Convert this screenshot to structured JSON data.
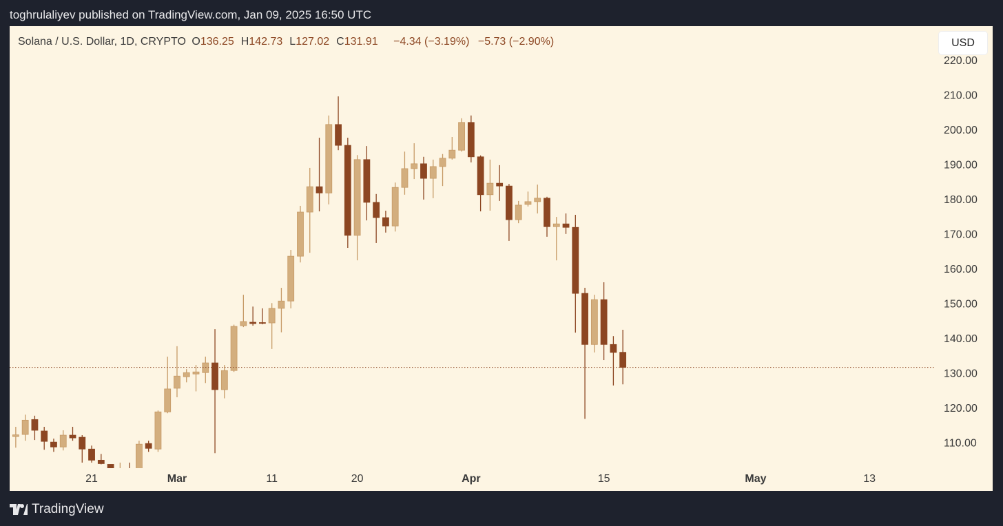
{
  "header": {
    "byline": "toghrulaliyev published on TradingView.com, Jan 09, 2025 16:50 UTC"
  },
  "footer": {
    "brand": "TradingView"
  },
  "toolbar": {
    "currency": "USD"
  },
  "legend": {
    "symbol": "Solana / U.S. Dollar, 1D, CRYPTO",
    "items": [
      {
        "label": "O",
        "value": "136.25"
      },
      {
        "label": "H",
        "value": "142.73"
      },
      {
        "label": "L",
        "value": "127.02"
      },
      {
        "label": "C",
        "value": "131.91"
      }
    ],
    "changes": [
      "−4.34 (−3.19%)",
      "−5.73 (−2.90%)"
    ]
  },
  "chart_data": {
    "type": "candlestick",
    "categories": [
      null,
      null,
      null,
      null,
      null,
      null,
      null,
      null,
      "21",
      null,
      null,
      null,
      null,
      null,
      null,
      null,
      null,
      "Mar",
      null,
      null,
      null,
      null,
      null,
      null,
      null,
      null,
      null,
      "11",
      null,
      null,
      null,
      null,
      null,
      null,
      null,
      null,
      "20",
      null,
      null,
      null,
      null,
      null,
      null,
      null,
      null,
      null,
      null,
      null,
      "Apr",
      null,
      null,
      null,
      null,
      null,
      null,
      null,
      null,
      null,
      null,
      null,
      null,
      null,
      "15",
      null,
      null,
      null,
      null,
      null,
      null,
      null,
      null,
      null,
      null,
      null,
      null,
      null,
      null,
      null,
      "May",
      null,
      null,
      null,
      null,
      null,
      null,
      null,
      null,
      null,
      null,
      null,
      "13",
      null,
      null,
      null,
      null,
      null,
      null,
      null,
      null,
      null,
      null,
      null,
      null
    ],
    "open": [
      112.0,
      112.6,
      116.9,
      113.6,
      110.4,
      109.0,
      112.4,
      111.8,
      108.4,
      105.2,
      104.0,
      101.0,
      102.0,
      101.5,
      110.0,
      108.4,
      119.1,
      125.9,
      129.2,
      130.0,
      130.4,
      133.2,
      125.5,
      131.0,
      143.9,
      144.9,
      144.8,
      144.7,
      148.9,
      151.0,
      163.9,
      176.6,
      183.9,
      182.1,
      201.8,
      195.8,
      169.9,
      191.7,
      179.4,
      175.0,
      172.6,
      183.7,
      189.1,
      190.5,
      186.3,
      189.7,
      192.1,
      194.4,
      202.4,
      192.5,
      181.6,
      184.9,
      184.1,
      174.4,
      178.8,
      179.6,
      180.6,
      172.4,
      173.2,
      172.2,
      153.2,
      138.5,
      151.4,
      138.5,
      136.25,
      null,
      null,
      null,
      null,
      null,
      null,
      null,
      null,
      null,
      null,
      null,
      null,
      null,
      null,
      null,
      null,
      null,
      null,
      null,
      null,
      null,
      null,
      null,
      null,
      null,
      null,
      null,
      null,
      null,
      null,
      null,
      null,
      null,
      null,
      null,
      null,
      null,
      null
    ],
    "high": [
      114.8,
      118.3,
      118.0,
      114.8,
      111.4,
      113.8,
      114.8,
      112.4,
      109.4,
      107.0,
      103.0,
      104.5,
      104.5,
      110.8,
      110.8,
      119.5,
      135.0,
      138.0,
      131.4,
      132.6,
      135.0,
      142.9,
      132.6,
      144.2,
      152.8,
      149.4,
      148.9,
      150.4,
      154.8,
      165.7,
      178.4,
      189.3,
      198.0,
      204.4,
      209.9,
      198.0,
      193.0,
      195.6,
      181.8,
      177.0,
      185.1,
      194.0,
      196.4,
      192.5,
      191.7,
      193.3,
      198.2,
      203.6,
      204.4,
      192.9,
      191.7,
      190.1,
      184.7,
      179.8,
      182.5,
      184.5,
      181.0,
      175.2,
      176.2,
      175.8,
      154.8,
      152.8,
      156.4,
      140.9,
      142.73,
      null,
      null,
      null,
      null,
      null,
      null,
      null,
      null,
      null,
      null,
      null,
      null,
      null,
      null,
      null,
      null,
      null,
      null,
      null,
      null,
      null,
      null,
      null,
      null,
      null,
      null,
      null,
      null,
      null,
      null,
      null,
      null,
      null,
      null,
      null,
      null,
      null,
      null
    ],
    "low": [
      108.8,
      110.8,
      111.0,
      108.2,
      107.6,
      108.0,
      110.8,
      104.5,
      104.5,
      104.0,
      99.0,
      98.0,
      99.0,
      101.0,
      107.6,
      107.6,
      118.7,
      123.3,
      127.6,
      125.0,
      127.4,
      107.2,
      123.0,
      130.6,
      143.5,
      143.9,
      144.3,
      137.2,
      142.0,
      148.9,
      162.1,
      164.9,
      176.8,
      178.8,
      194.4,
      166.3,
      162.7,
      174.2,
      167.7,
      170.7,
      171.0,
      181.6,
      186.1,
      180.2,
      180.6,
      184.1,
      191.7,
      194.0,
      190.9,
      176.8,
      177.0,
      179.8,
      168.3,
      173.4,
      178.2,
      176.2,
      169.5,
      162.7,
      170.3,
      141.9,
      117.1,
      136.2,
      134.0,
      126.7,
      127.02,
      null,
      null,
      null,
      null,
      null,
      null,
      null,
      null,
      null,
      null,
      null,
      null,
      null,
      null,
      null,
      null,
      null,
      null,
      null,
      null,
      null,
      null,
      null,
      null,
      null,
      null,
      null,
      null,
      null,
      null,
      null,
      null,
      null,
      null,
      null,
      null,
      null,
      null
    ],
    "close": [
      112.5,
      116.7,
      113.8,
      110.6,
      109.0,
      112.4,
      111.6,
      108.4,
      105.2,
      104.2,
      101.0,
      102.0,
      101.0,
      109.8,
      108.6,
      119.1,
      125.7,
      129.4,
      130.4,
      130.6,
      133.2,
      125.5,
      131.0,
      143.7,
      145.1,
      144.5,
      144.6,
      148.9,
      151.0,
      163.9,
      176.6,
      183.9,
      182.1,
      201.8,
      195.8,
      169.9,
      191.7,
      179.4,
      175.0,
      172.6,
      183.7,
      189.1,
      190.5,
      186.3,
      189.7,
      192.1,
      194.4,
      202.4,
      192.5,
      181.6,
      184.9,
      184.1,
      174.4,
      178.6,
      179.6,
      180.6,
      172.4,
      173.2,
      172.2,
      153.2,
      138.5,
      151.4,
      138.5,
      136.2,
      131.91,
      null,
      null,
      null,
      null,
      null,
      null,
      null,
      null,
      null,
      null,
      null,
      null,
      null,
      null,
      null,
      null,
      null,
      null,
      null,
      null,
      null,
      null,
      null,
      null,
      null,
      null,
      null,
      null,
      null,
      null,
      null,
      null,
      null,
      null,
      null,
      null,
      null,
      null
    ],
    "up_color": "#d3ae7e",
    "up_wick": "#c69a66",
    "down_color": "#8c4622",
    "ylim": [
      102.9,
      230.1
    ],
    "yticks": [
      {
        "value": 110,
        "label": "110.00"
      },
      {
        "value": 120,
        "label": "120.00"
      },
      {
        "value": 130,
        "label": "130.00"
      },
      {
        "value": 140,
        "label": "140.00"
      },
      {
        "value": 150,
        "label": "150.00"
      },
      {
        "value": 160,
        "label": "160.00"
      },
      {
        "value": 170,
        "label": "170.00"
      },
      {
        "value": 180,
        "label": "180.00"
      },
      {
        "value": 190,
        "label": "190.00"
      },
      {
        "value": 200,
        "label": "200.00"
      },
      {
        "value": 210,
        "label": "210.00"
      },
      {
        "value": 220,
        "label": "220.00"
      }
    ],
    "grid": false,
    "last_price_line": true
  }
}
